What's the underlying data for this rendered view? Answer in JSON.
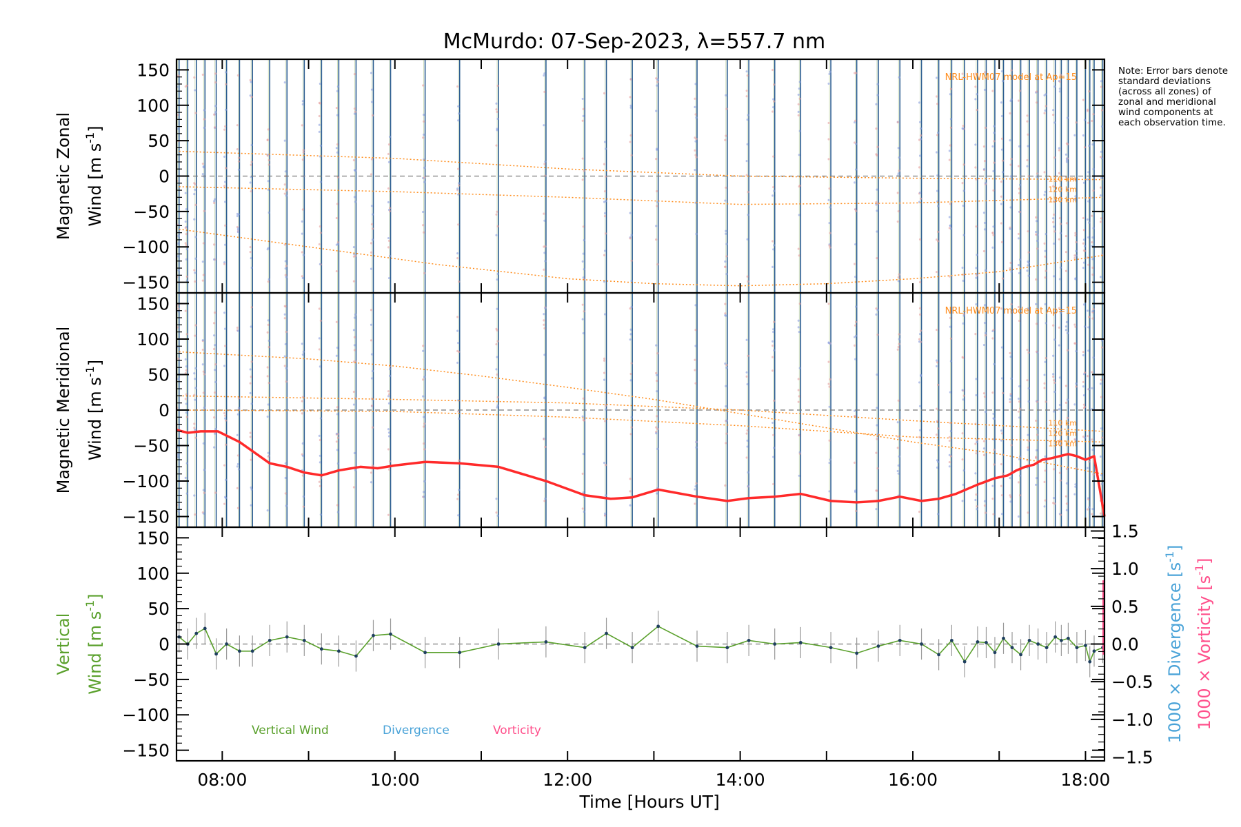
{
  "title": "McMurdo: 07-Sep-2023, λ=557.7 nm",
  "note": "Note: Error bars denote standard deviations (across all zones) of zonal and meridional wind components at each observation time.",
  "colors": {
    "text": "#000000",
    "model": "#ff8c1a",
    "vertical": "#5aa02c",
    "divergence": "#4aa3d8",
    "vorticity": "#ff4f8b",
    "obs_line": "#2a5c8f",
    "mean_meridional": "#ff2a2a",
    "zero_line": "#777777",
    "error_bar": "#999999"
  },
  "chart_data": [
    {
      "panel": "zonal",
      "type": "line",
      "ylabel_line1": "Magnetic Zonal",
      "ylabel_line2": "Wind [m s",
      "ylabel_exp": "-1",
      "ylabel_end": "]",
      "ylim": [
        -165,
        165
      ],
      "yticks": [
        150,
        100,
        50,
        0,
        -50,
        -100,
        -150
      ],
      "xlim": [
        7.47,
        18.22
      ],
      "model_label": "NRL-HWM07 model at Ap=15",
      "model_series": [
        {
          "name": "110 km",
          "x": [
            7.5,
            10,
            12,
            14,
            16,
            18.2
          ],
          "values": [
            -15,
            -22,
            -30,
            -40,
            -38,
            -30
          ]
        },
        {
          "name": "120 km",
          "x": [
            7.5,
            10,
            12,
            14,
            16,
            18.2
          ],
          "values": [
            35,
            25,
            10,
            0,
            -3,
            -5
          ]
        },
        {
          "name": "130 km",
          "x": [
            7.5,
            9,
            10.5,
            12,
            13,
            14,
            15,
            16,
            17,
            18.2
          ],
          "values": [
            -75,
            -100,
            -125,
            -145,
            -152,
            -155,
            -152,
            -145,
            -135,
            -112
          ]
        }
      ],
      "model_alt_labels": [
        "110 km",
        "120 km",
        "130 km"
      ]
    },
    {
      "panel": "meridional",
      "type": "line",
      "ylabel_line1": "Magnetic Meridional",
      "ylabel_line2": "Wind [m s",
      "ylabel_exp": "-1",
      "ylabel_end": "]",
      "ylim": [
        -165,
        165
      ],
      "yticks": [
        150,
        100,
        50,
        0,
        -50,
        -100,
        -150
      ],
      "xlim": [
        7.47,
        18.22
      ],
      "model_label": "NRL-HWM07 model at Ap=15",
      "model_series": [
        {
          "name": "110 km",
          "x": [
            7.5,
            10,
            12,
            14,
            16,
            18.2
          ],
          "values": [
            20,
            15,
            10,
            0,
            -15,
            -30
          ]
        },
        {
          "name": "120 km",
          "x": [
            7.5,
            10,
            12,
            14,
            16,
            18.2
          ],
          "values": [
            0,
            -2,
            -10,
            -22,
            -38,
            -45
          ]
        },
        {
          "name": "130 km",
          "x": [
            7.5,
            9,
            10,
            11,
            12,
            13,
            14,
            15,
            16,
            17,
            18.2
          ],
          "values": [
            82,
            72,
            62,
            48,
            32,
            15,
            -5,
            -25,
            -45,
            -62,
            -90
          ]
        }
      ],
      "model_alt_labels": [
        "110 km",
        "120 km",
        "130 km"
      ],
      "mean_series": {
        "name": "Mean meridional wind",
        "x": [
          7.47,
          7.6,
          7.75,
          7.95,
          8.2,
          8.55,
          8.75,
          8.95,
          9.15,
          9.35,
          9.6,
          9.8,
          10.0,
          10.35,
          10.75,
          11.2,
          11.75,
          12.2,
          12.5,
          12.75,
          13.05,
          13.5,
          13.85,
          14.1,
          14.4,
          14.7,
          15.05,
          15.35,
          15.6,
          15.85,
          16.1,
          16.3,
          16.5,
          16.75,
          16.95,
          17.1,
          17.2,
          17.3,
          17.4,
          17.5,
          17.6,
          17.7,
          17.8,
          17.9,
          18.0,
          18.1,
          18.22
        ],
        "values": [
          -28,
          -32,
          -30,
          -30,
          -45,
          -75,
          -80,
          -88,
          -92,
          -85,
          -80,
          -82,
          -78,
          -73,
          -75,
          -80,
          -100,
          -120,
          -125,
          -123,
          -112,
          -122,
          -128,
          -124,
          -122,
          -118,
          -128,
          -130,
          -128,
          -122,
          -128,
          -125,
          -118,
          -105,
          -96,
          -92,
          -85,
          -80,
          -77,
          -70,
          -68,
          -65,
          -62,
          -65,
          -70,
          -65,
          -150
        ]
      }
    },
    {
      "panel": "vertical",
      "type": "line",
      "ylabel_line1": "Vertical",
      "ylabel_line2": "Wind [m s",
      "ylabel_exp": "-1",
      "ylabel_end": "]",
      "ylim": [
        -165,
        165
      ],
      "yticks": [
        150,
        100,
        50,
        0,
        -50,
        -100,
        -150
      ],
      "xlim": [
        7.47,
        18.22
      ],
      "xticks": [
        8,
        10,
        12,
        14,
        16,
        18
      ],
      "xtick_labels": [
        "08:00",
        "10:00",
        "12:00",
        "14:00",
        "16:00",
        "18:00"
      ],
      "xlabel": "Time [Hours UT]",
      "y2lim": [
        -1.55,
        1.55
      ],
      "y2ticks": [
        1.5,
        1.0,
        0.5,
        0.0,
        -0.5,
        -1.0,
        -1.5
      ],
      "y2tick_labels": [
        "1.5",
        "1.0",
        "0.5",
        "0.0",
        "−0.5",
        "−1.0",
        "−1.5"
      ],
      "y2label_div": "1000 × Divergence [s",
      "y2label_vor": "1000 × Vorticity [s",
      "y2label_exp": "-1",
      "y2label_end": "]",
      "legend": [
        {
          "name": "Vertical Wind",
          "color": "#5aa02c"
        },
        {
          "name": "Divergence",
          "color": "#4aa3d8"
        },
        {
          "name": "Vorticity",
          "color": "#ff4f8b"
        }
      ],
      "series": [
        {
          "name": "Vertical Wind",
          "x": [
            7.5,
            7.6,
            7.7,
            7.8,
            7.93,
            8.05,
            8.2,
            8.35,
            8.55,
            8.75,
            8.95,
            9.15,
            9.35,
            9.55,
            9.75,
            9.95,
            10.35,
            10.75,
            11.2,
            11.75,
            12.2,
            12.45,
            12.75,
            13.05,
            13.5,
            13.85,
            14.1,
            14.4,
            14.7,
            15.05,
            15.35,
            15.6,
            15.85,
            16.1,
            16.3,
            16.45,
            16.6,
            16.75,
            16.85,
            16.95,
            17.05,
            17.15,
            17.25,
            17.35,
            17.45,
            17.55,
            17.65,
            17.72,
            17.8,
            17.9,
            18.0,
            18.05,
            18.1,
            18.2
          ],
          "values": [
            10,
            0,
            15,
            22,
            -14,
            0,
            -10,
            -10,
            5,
            10,
            5,
            -7,
            -10,
            -17,
            12,
            14,
            -12,
            -12,
            0,
            3,
            -5,
            15,
            -5,
            25,
            -3,
            -5,
            5,
            0,
            2,
            -5,
            -13,
            -3,
            5,
            0,
            -15,
            5,
            -25,
            3,
            2,
            -12,
            8,
            -5,
            -15,
            5,
            0,
            -5,
            10,
            5,
            8,
            -5,
            -2,
            -25,
            -10,
            -5
          ]
        }
      ]
    }
  ]
}
